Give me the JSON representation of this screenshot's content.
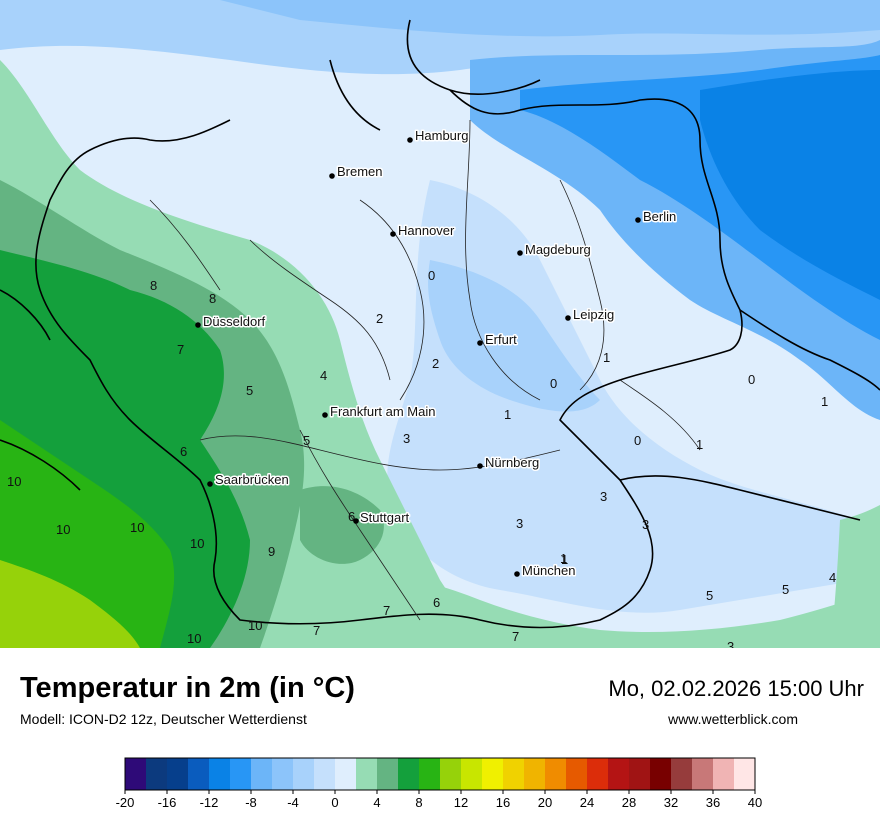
{
  "map": {
    "cities": [
      {
        "name": "Hamburg"
      },
      {
        "name": "Bremen"
      },
      {
        "name": "Hannover"
      },
      {
        "name": "Berlin"
      },
      {
        "name": "Magdeburg"
      },
      {
        "name": "Düsseldorf"
      },
      {
        "name": "Leipzig"
      },
      {
        "name": "Erfurt"
      },
      {
        "name": "Frankfurt am Main"
      },
      {
        "name": "Nürnberg"
      },
      {
        "name": "Saarbrücken"
      },
      {
        "name": "Stuttgart"
      },
      {
        "name": "München"
      }
    ],
    "isotherm_labels": [
      "0",
      "2",
      "2",
      "4",
      "1",
      "0",
      "1",
      "0",
      "1",
      "0",
      "1",
      "1",
      "8",
      "8",
      "7",
      "5",
      "5",
      "6",
      "6",
      "10",
      "10",
      "10",
      "10",
      "9",
      "3",
      "3",
      "3",
      "3",
      "1",
      "4",
      "5",
      "5",
      "6",
      "7",
      "7",
      "7",
      "10",
      "10",
      "3"
    ]
  },
  "footer": {
    "title": "Temperatur in 2m (in °C)",
    "subtitle": "Modell: ICON-D2 12z, Deutscher Wetterdienst",
    "datetime": "Mo, 02.02.2026 15:00 Uhr",
    "website": "www.wetterblick.com"
  },
  "legend": {
    "tick_labels": [
      "-20",
      "-16",
      "-12",
      "-8",
      "-4",
      "0",
      "4",
      "8",
      "12",
      "16",
      "20",
      "24",
      "28",
      "32",
      "36",
      "40"
    ],
    "colors": [
      "#2e0a78",
      "#0c3a7e",
      "#063f8c",
      "#0a5cbe",
      "#0a82e6",
      "#2896f5",
      "#6cb5f8",
      "#8cc4fa",
      "#a8d2fb",
      "#c5e0fc",
      "#dfeefd",
      "#96dcb4",
      "#64b482",
      "#14a03c",
      "#28b414",
      "#96d20a",
      "#c8e600",
      "#f0f000",
      "#f0d200",
      "#f0b400",
      "#f08c00",
      "#e65a00",
      "#dc2d0a",
      "#b41414",
      "#a01414",
      "#780000",
      "#963c3c",
      "#c87878",
      "#f0b4b4",
      "#ffe6e6"
    ]
  }
}
